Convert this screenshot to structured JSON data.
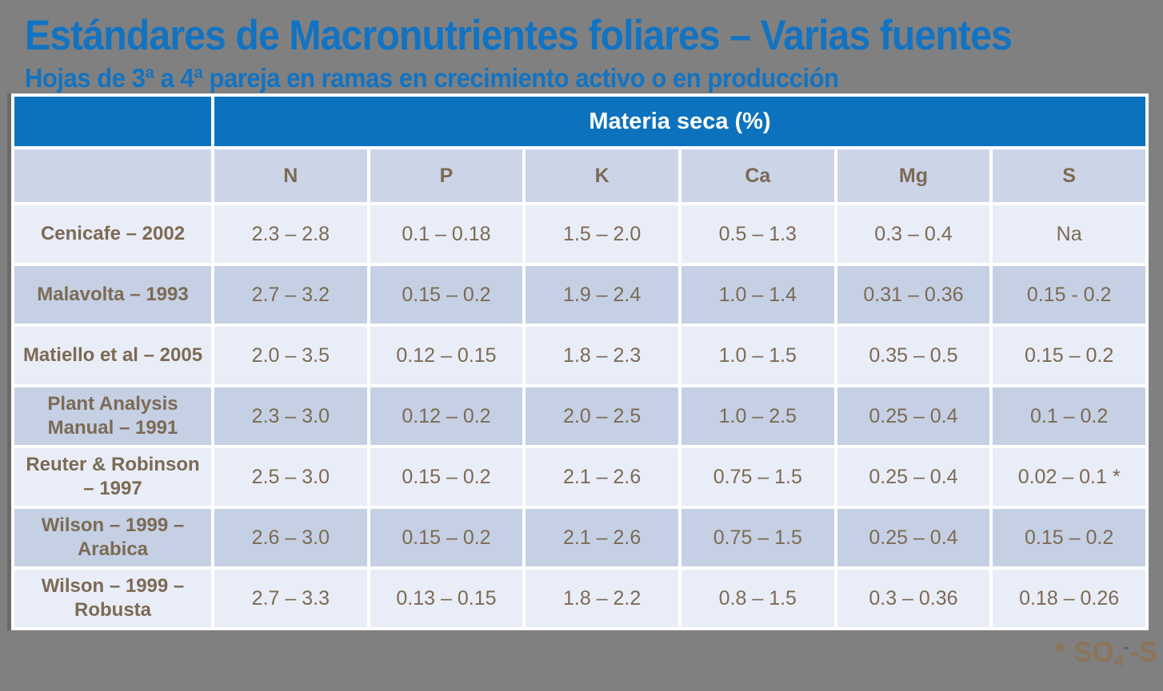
{
  "header": {
    "title": "Estándares de Macronutrientes foliares – Varias fuentes",
    "subtitle": "Hojas de 3ª a 4ª pareja en ramas en crecimiento activo o en producción"
  },
  "table": {
    "group_header": "Materia seca (%)",
    "columns": [
      "N",
      "P",
      "K",
      "Ca",
      "Mg",
      "S"
    ],
    "rows": [
      {
        "source": "Cenicafe – 2002",
        "values": [
          "2.3 – 2.8",
          "0.1 – 0.18",
          "1.5 – 2.0",
          "0.5 – 1.3",
          "0.3 – 0.4",
          "Na"
        ]
      },
      {
        "source": "Malavolta – 1993",
        "values": [
          "2.7 – 3.2",
          "0.15 – 0.2",
          "1.9 – 2.4",
          "1.0 – 1.4",
          "0.31 – 0.36",
          "0.15 - 0.2"
        ]
      },
      {
        "source": "Matiello et al – 2005",
        "values": [
          "2.0 – 3.5",
          "0.12 – 0.15",
          "1.8 – 2.3",
          "1.0 – 1.5",
          "0.35 – 0.5",
          "0.15 – 0.2"
        ]
      },
      {
        "source": "Plant Analysis Manual – 1991",
        "values": [
          "2.3 – 3.0",
          "0.12 – 0.2",
          "2.0 – 2.5",
          "1.0 – 2.5",
          "0.25 – 0.4",
          "0.1 – 0.2"
        ]
      },
      {
        "source": "Reuter & Robinson – 1997",
        "values": [
          "2.5 – 3.0",
          "0.15 – 0.2",
          "2.1 – 2.6",
          "0.75 – 1.5",
          "0.25 – 0.4",
          "0.02 – 0.1 *"
        ]
      },
      {
        "source": "Wilson – 1999 – Arabica",
        "values": [
          "2.6 – 3.0",
          "0.15 – 0.2",
          "2.1 – 2.6",
          "0.75 – 1.5",
          "0.25 – 0.4",
          "0.15 – 0.2"
        ]
      },
      {
        "source": "Wilson – 1999 – Robusta",
        "values": [
          "2.7 – 3.3",
          "0.13 – 0.15",
          "1.8 – 2.2",
          "0.8 – 1.5",
          "0.3 – 0.36",
          "0.18 – 0.26"
        ]
      }
    ]
  },
  "footnote": {
    "prefix": "* SO",
    "subscript": "4",
    "superscript": "-",
    "suffix": "-S"
  },
  "colors": {
    "background": "#808080",
    "title_blue": "#1273c2",
    "header_blue": "#0d72bd",
    "column_header_bg": "#ccd5e8",
    "row_light": "#e9edf7",
    "row_dark": "#c5d0e4",
    "table_text_brown": "#7c6a54",
    "footnote_brown": "#8c7457",
    "gridline_white": "#ffffff"
  }
}
